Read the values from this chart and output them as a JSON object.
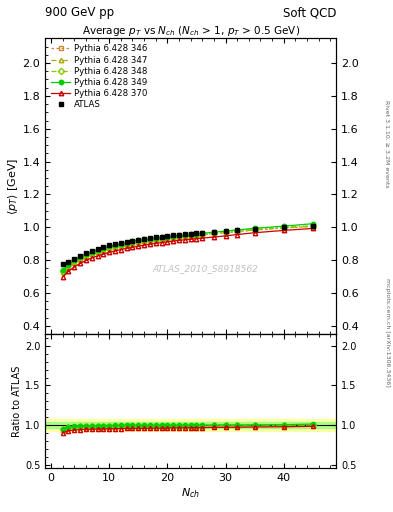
{
  "title_top_left": "900 GeV pp",
  "title_top_right": "Soft QCD",
  "plot_title": "Average $p_{T}$ vs $N_{ch}$ ($N_{ch}$ > 1, $p_{T}$ > 0.5 GeV)",
  "xlabel": "$N_{ch}$",
  "ylabel_main": "$\\langle p_{T} \\rangle$ [GeV]",
  "ylabel_ratio": "Ratio to ATLAS",
  "right_label_top": "Rivet 3.1.10, ≥ 3.2M events",
  "right_label_bottom": "mcplots.cern.ch [arXiv:1306.3436]",
  "watermark": "ATLAS_2010_S8918562",
  "ylim_main": [
    0.35,
    2.15
  ],
  "ylim_ratio": [
    0.45,
    2.15
  ],
  "xlim": [
    -1,
    49
  ],
  "yticks_main": [
    0.4,
    0.6,
    0.8,
    1.0,
    1.2,
    1.4,
    1.6,
    1.8,
    2.0
  ],
  "yticks_ratio": [
    0.5,
    1.0,
    1.5,
    2.0
  ],
  "xticks": [
    0,
    10,
    20,
    30,
    40
  ],
  "atlas_x": [
    2,
    3,
    4,
    5,
    6,
    7,
    8,
    9,
    10,
    11,
    12,
    13,
    14,
    15,
    16,
    17,
    18,
    19,
    20,
    21,
    22,
    23,
    24,
    25,
    26,
    28,
    30,
    32,
    35,
    40,
    45
  ],
  "atlas_y": [
    0.775,
    0.79,
    0.81,
    0.828,
    0.845,
    0.858,
    0.87,
    0.88,
    0.89,
    0.898,
    0.905,
    0.912,
    0.918,
    0.924,
    0.93,
    0.935,
    0.94,
    0.944,
    0.948,
    0.951,
    0.954,
    0.957,
    0.96,
    0.963,
    0.966,
    0.97,
    0.977,
    0.984,
    0.992,
    1.003,
    1.01
  ],
  "atlas_yerr": 0.012,
  "atlas_color": "#000000",
  "series": [
    {
      "label": "Pythia 6.428 346",
      "color": "#cc8833",
      "linestyle": "dotted",
      "marker": "s",
      "markerfill": "none",
      "x": [
        2,
        3,
        4,
        5,
        6,
        7,
        8,
        9,
        10,
        11,
        12,
        13,
        14,
        15,
        16,
        17,
        18,
        19,
        20,
        21,
        22,
        23,
        24,
        25,
        26,
        28,
        30,
        32,
        35,
        40,
        45
      ],
      "y": [
        0.73,
        0.76,
        0.785,
        0.805,
        0.822,
        0.837,
        0.85,
        0.861,
        0.871,
        0.88,
        0.888,
        0.895,
        0.902,
        0.908,
        0.914,
        0.919,
        0.924,
        0.929,
        0.933,
        0.937,
        0.941,
        0.945,
        0.948,
        0.951,
        0.955,
        0.96,
        0.967,
        0.974,
        0.983,
        0.996,
        1.005
      ]
    },
    {
      "label": "Pythia 6.428 347",
      "color": "#aaaa00",
      "linestyle": "dashdot",
      "marker": "^",
      "markerfill": "none",
      "x": [
        2,
        3,
        4,
        5,
        6,
        7,
        8,
        9,
        10,
        11,
        12,
        13,
        14,
        15,
        16,
        17,
        18,
        19,
        20,
        21,
        22,
        23,
        24,
        25,
        26,
        28,
        30,
        32,
        35,
        40,
        45
      ],
      "y": [
        0.73,
        0.762,
        0.787,
        0.808,
        0.825,
        0.84,
        0.852,
        0.863,
        0.873,
        0.882,
        0.89,
        0.897,
        0.904,
        0.91,
        0.916,
        0.921,
        0.926,
        0.93,
        0.934,
        0.938,
        0.942,
        0.946,
        0.949,
        0.952,
        0.956,
        0.961,
        0.968,
        0.975,
        0.984,
        0.997,
        1.006
      ]
    },
    {
      "label": "Pythia 6.428 348",
      "color": "#88cc00",
      "linestyle": "dashdot",
      "marker": "D",
      "markerfill": "none",
      "x": [
        2,
        3,
        4,
        5,
        6,
        7,
        8,
        9,
        10,
        11,
        12,
        13,
        14,
        15,
        16,
        17,
        18,
        19,
        20,
        21,
        22,
        23,
        24,
        25,
        26,
        28,
        30,
        32,
        35,
        40,
        45
      ],
      "y": [
        0.735,
        0.768,
        0.793,
        0.813,
        0.83,
        0.845,
        0.857,
        0.868,
        0.878,
        0.887,
        0.894,
        0.901,
        0.908,
        0.914,
        0.92,
        0.925,
        0.93,
        0.934,
        0.938,
        0.942,
        0.945,
        0.949,
        0.952,
        0.955,
        0.958,
        0.964,
        0.971,
        0.978,
        0.987,
        1.0,
        1.01
      ]
    },
    {
      "label": "Pythia 6.428 349",
      "color": "#00cc00",
      "linestyle": "solid",
      "marker": "o",
      "markerfill": "#00cc00",
      "x": [
        2,
        3,
        4,
        5,
        6,
        7,
        8,
        9,
        10,
        11,
        12,
        13,
        14,
        15,
        16,
        17,
        18,
        19,
        20,
        21,
        22,
        23,
        24,
        25,
        26,
        28,
        30,
        32,
        35,
        40,
        45
      ],
      "y": [
        0.74,
        0.773,
        0.798,
        0.818,
        0.836,
        0.851,
        0.863,
        0.874,
        0.884,
        0.893,
        0.9,
        0.907,
        0.914,
        0.92,
        0.926,
        0.931,
        0.936,
        0.94,
        0.944,
        0.947,
        0.951,
        0.954,
        0.958,
        0.961,
        0.964,
        0.97,
        0.977,
        0.984,
        0.994,
        1.007,
        1.022
      ]
    },
    {
      "label": "Pythia 6.428 370",
      "color": "#cc0000",
      "linestyle": "solid",
      "marker": "^",
      "markerfill": "none",
      "x": [
        2,
        3,
        4,
        5,
        6,
        7,
        8,
        9,
        10,
        11,
        12,
        13,
        14,
        15,
        16,
        17,
        18,
        19,
        20,
        21,
        22,
        23,
        24,
        25,
        26,
        28,
        30,
        32,
        35,
        40,
        45
      ],
      "y": [
        0.698,
        0.732,
        0.758,
        0.78,
        0.798,
        0.813,
        0.826,
        0.837,
        0.847,
        0.856,
        0.864,
        0.872,
        0.878,
        0.885,
        0.891,
        0.897,
        0.902,
        0.907,
        0.911,
        0.916,
        0.92,
        0.924,
        0.927,
        0.931,
        0.934,
        0.941,
        0.948,
        0.956,
        0.967,
        0.981,
        0.993
      ]
    }
  ],
  "band_color_yellow": "#ffff66",
  "band_color_green": "#66ff66",
  "band_alpha": 0.5
}
